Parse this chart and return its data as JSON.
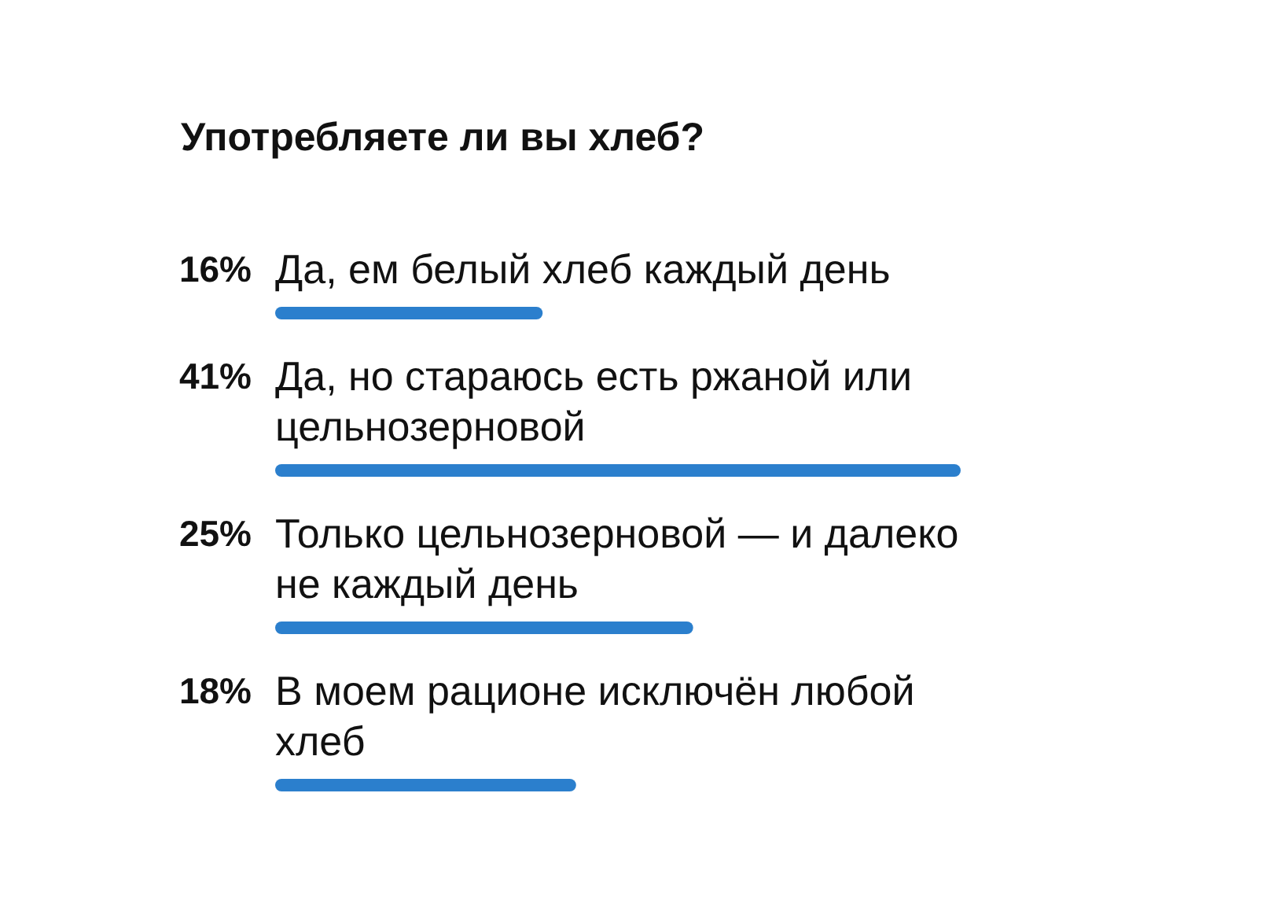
{
  "chart_data": {
    "type": "bar",
    "orientation": "horizontal",
    "title": "Употребляете ли вы хлеб?",
    "categories": [
      "Да, ем белый хлеб каждый день",
      "Да, но стараюсь есть ржаной или цельнозерновой",
      "Только цельнозерновой — и далеко не каждый день",
      "В моем рационе исключён любой хлеб"
    ],
    "values": [
      16,
      41,
      25,
      18
    ],
    "value_labels": [
      "16%",
      "41%",
      "25%",
      "18%"
    ],
    "color": "#2b7fcd"
  }
}
